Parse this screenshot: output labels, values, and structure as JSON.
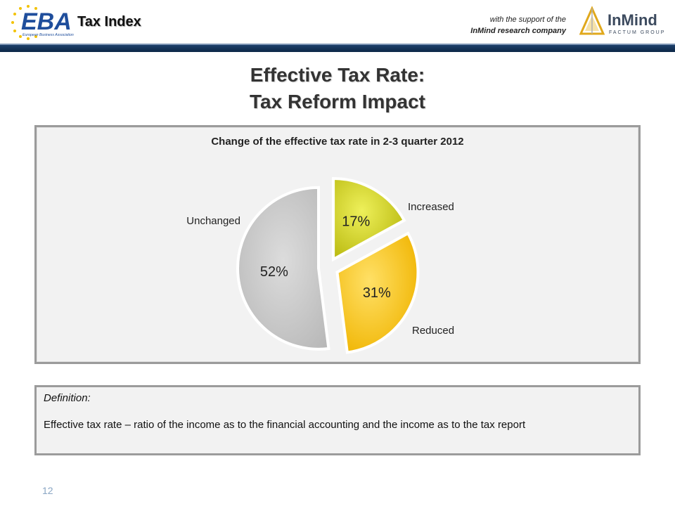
{
  "header": {
    "brand_text": "Tax Index",
    "support_line1": "with the support of the",
    "support_line2": "InMind research company",
    "eba_logo_text": "EBA",
    "eba_logo_subtext": "European Business Association",
    "inmind_logo_text": "InMind",
    "inmind_logo_subtext": "FACTUM GROUP"
  },
  "page": {
    "title_line1": "Effective Tax Rate:",
    "title_line2": "Tax Reform Impact",
    "page_number": "12"
  },
  "chart_data": {
    "type": "pie",
    "title": "Change of the effective tax rate in 2-3 quarter 2012",
    "slices": [
      {
        "name": "Increased",
        "value": 17,
        "label": "17%",
        "color": "#d4d42a"
      },
      {
        "name": "Reduced",
        "value": 31,
        "label": "31%",
        "color": "#ffc800"
      },
      {
        "name": "Unchanged",
        "value": 52,
        "label": "52%",
        "color": "#c8c8c8"
      }
    ],
    "exploded": true
  },
  "definition": {
    "label": "Definition:",
    "text": "Effective tax rate –  ratio of the income as to the financial accounting and the income as to the tax report"
  },
  "colors": {
    "header_bar": "#1d3f6b",
    "eba_blue": "#1f4e9c",
    "eba_star": "#f2c200",
    "inmind_gold": "#e0a81c"
  }
}
